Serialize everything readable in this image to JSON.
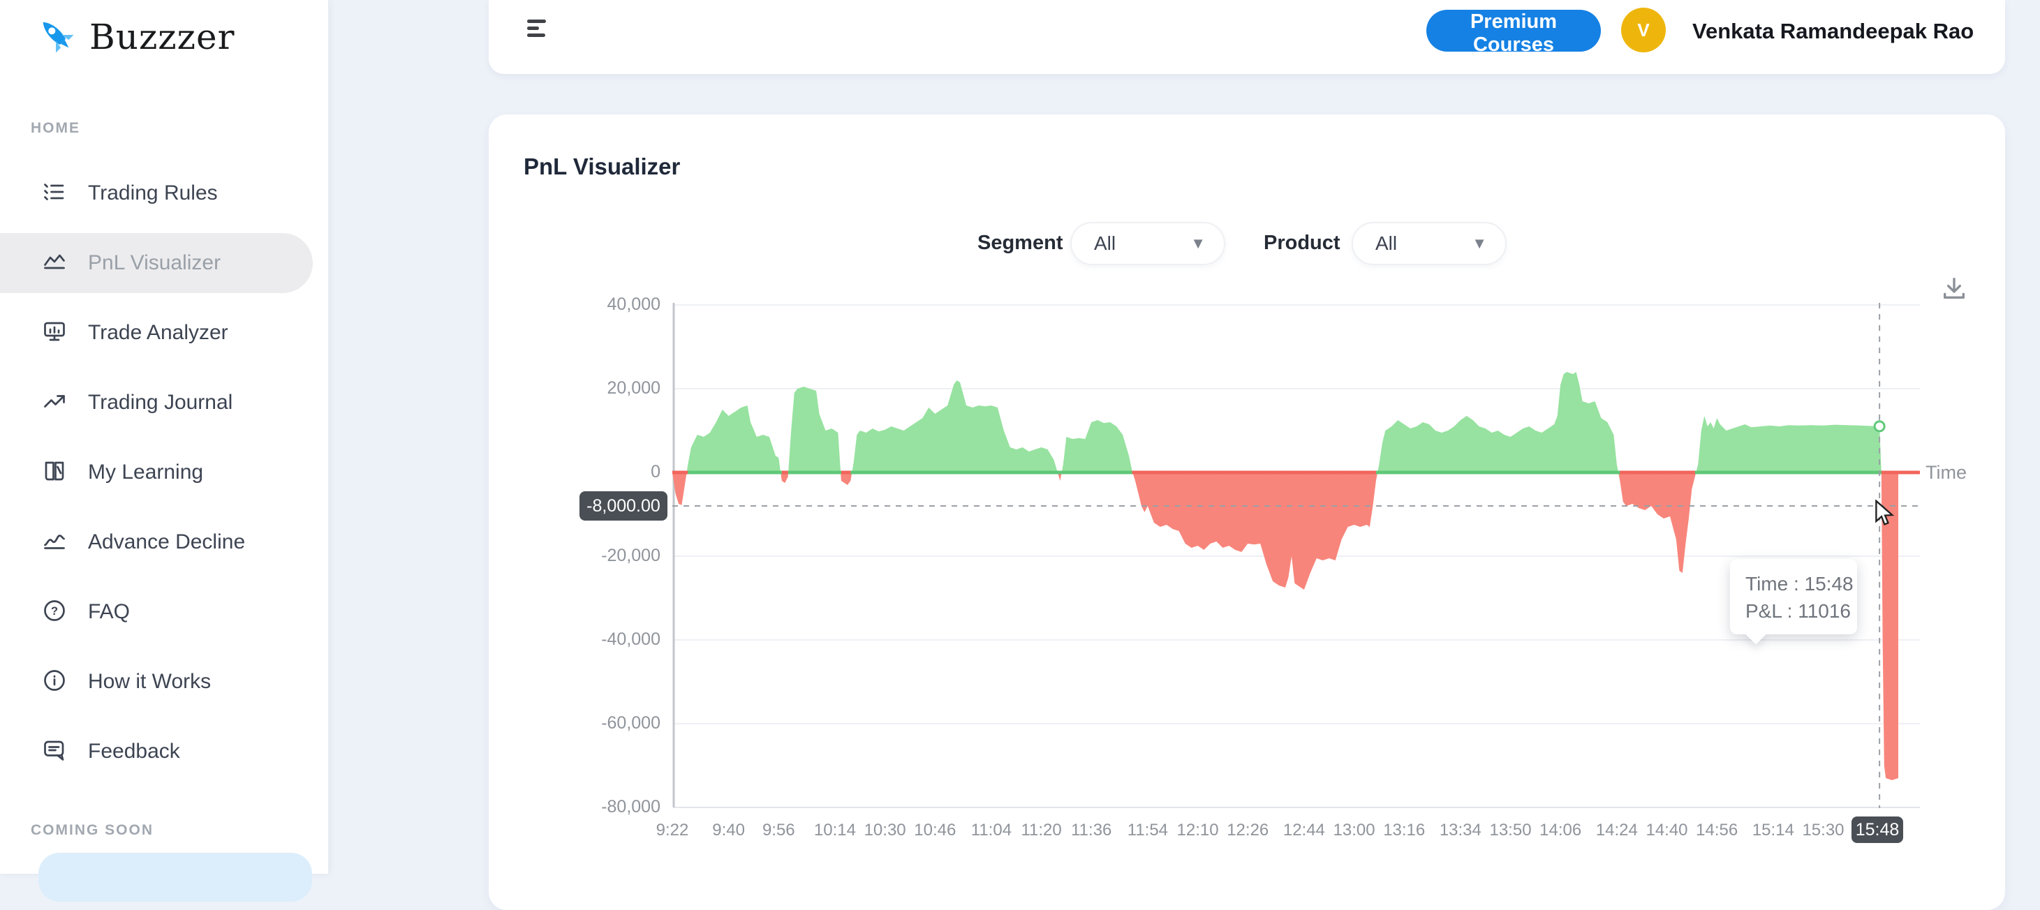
{
  "sidebar": {
    "logo_text": "Buzzzer",
    "section_home": "HOME",
    "section_coming_soon": "COMING SOON",
    "items": [
      {
        "icon": "list-check",
        "label": "Trading Rules",
        "active": false
      },
      {
        "icon": "area-chart",
        "label": "PnL Visualizer",
        "active": true
      },
      {
        "icon": "monitor",
        "label": "Trade Analyzer",
        "active": false
      },
      {
        "icon": "trend-up",
        "label": "Trading Journal",
        "active": false
      },
      {
        "icon": "book",
        "label": "My Learning",
        "active": false
      },
      {
        "icon": "wave",
        "label": "Advance Decline",
        "active": false
      },
      {
        "icon": "question",
        "label": "FAQ",
        "active": false
      },
      {
        "icon": "info",
        "label": "How it Works",
        "active": false
      },
      {
        "icon": "chat",
        "label": "Feedback",
        "active": false
      }
    ]
  },
  "topbar": {
    "premium_button": "Premium Courses",
    "avatar_initial": "V",
    "user_name": "Venkata Ramandeepak Rao"
  },
  "main": {
    "title": "PnL Visualizer",
    "filters": {
      "segment_label": "Segment",
      "segment_value": "All",
      "product_label": "Product",
      "product_value": "All"
    }
  },
  "colors": {
    "accent_blue": "#1581e4",
    "avatar_gold": "#eeb60d",
    "positive_fill": "#97e2a0",
    "negative_fill": "#f8857b",
    "positive_line": "#5fc878",
    "negative_line": "#f2655c",
    "badge_bg": "#4a4f55"
  },
  "chart_data": {
    "type": "area",
    "title": "PnL Visualizer",
    "xlabel": "Time",
    "ylabel": "",
    "ylim": [
      -80000,
      40000
    ],
    "grid": true,
    "t_max": 392,
    "y_ticks": [
      {
        "label": "40,000",
        "v": 40000
      },
      {
        "label": "20,000",
        "v": 20000
      },
      {
        "label": "0",
        "v": 0
      },
      {
        "label": "-20,000",
        "v": -20000
      },
      {
        "label": "-40,000",
        "v": -40000
      },
      {
        "label": "-60,000",
        "v": -60000
      },
      {
        "label": "-80,000",
        "v": -80000
      }
    ],
    "x_ticks": [
      {
        "label": "9:22",
        "t": 0
      },
      {
        "label": "9:40",
        "t": 18
      },
      {
        "label": "9:56",
        "t": 34
      },
      {
        "label": "10:14",
        "t": 52
      },
      {
        "label": "10:30",
        "t": 68
      },
      {
        "label": "10:46",
        "t": 84
      },
      {
        "label": "11:04",
        "t": 102
      },
      {
        "label": "11:20",
        "t": 118
      },
      {
        "label": "11:36",
        "t": 134
      },
      {
        "label": "11:54",
        "t": 152
      },
      {
        "label": "12:10",
        "t": 168
      },
      {
        "label": "12:26",
        "t": 184
      },
      {
        "label": "12:44",
        "t": 202
      },
      {
        "label": "13:00",
        "t": 218
      },
      {
        "label": "13:16",
        "t": 234
      },
      {
        "label": "13:34",
        "t": 252
      },
      {
        "label": "13:50",
        "t": 268
      },
      {
        "label": "14:06",
        "t": 284
      },
      {
        "label": "14:24",
        "t": 302
      },
      {
        "label": "14:40",
        "t": 318
      },
      {
        "label": "14:56",
        "t": 334
      },
      {
        "label": "15:14",
        "t": 352
      },
      {
        "label": "15:30",
        "t": 368
      }
    ],
    "crosshair": {
      "t": 386,
      "value": 11016,
      "y_badge": "-8,000.00",
      "y_badge_value": -8000,
      "x_badge": "15:48"
    },
    "tooltip": {
      "line1": "Time : 15:48",
      "line2": "P&L : 11016"
    },
    "series": [
      {
        "name": "P&L",
        "points": [
          [
            0,
            0
          ],
          [
            1,
            -5000
          ],
          [
            2,
            -7500
          ],
          [
            3,
            -7800
          ],
          [
            4,
            -3000
          ],
          [
            5,
            2000
          ],
          [
            6,
            6000
          ],
          [
            8,
            9000
          ],
          [
            10,
            8500
          ],
          [
            12,
            9500
          ],
          [
            14,
            12000
          ],
          [
            16,
            15000
          ],
          [
            18,
            13500
          ],
          [
            20,
            14500
          ],
          [
            22,
            15500
          ],
          [
            24,
            16000
          ],
          [
            25,
            12000
          ],
          [
            27,
            8500
          ],
          [
            29,
            9000
          ],
          [
            31,
            8500
          ],
          [
            33,
            4000
          ],
          [
            34,
            3500
          ],
          [
            35,
            -2000
          ],
          [
            36,
            -2500
          ],
          [
            37,
            -1000
          ],
          [
            38,
            10000
          ],
          [
            39,
            19000
          ],
          [
            40,
            20000
          ],
          [
            42,
            20500
          ],
          [
            44,
            20000
          ],
          [
            46,
            19500
          ],
          [
            47,
            14000
          ],
          [
            49,
            10000
          ],
          [
            51,
            10500
          ],
          [
            53,
            9500
          ],
          [
            54,
            -2000
          ],
          [
            56,
            -3000
          ],
          [
            57,
            -2000
          ],
          [
            58,
            2500
          ],
          [
            59,
            9000
          ],
          [
            60,
            10000
          ],
          [
            62,
            9500
          ],
          [
            64,
            10500
          ],
          [
            66,
            9800
          ],
          [
            68,
            10200
          ],
          [
            70,
            11000
          ],
          [
            72,
            10500
          ],
          [
            74,
            10000
          ],
          [
            76,
            11000
          ],
          [
            78,
            12000
          ],
          [
            80,
            13000
          ],
          [
            82,
            15500
          ],
          [
            84,
            14000
          ],
          [
            86,
            15000
          ],
          [
            88,
            16000
          ],
          [
            90,
            21000
          ],
          [
            91,
            22000
          ],
          [
            92,
            21500
          ],
          [
            94,
            16000
          ],
          [
            96,
            15500
          ],
          [
            98,
            16000
          ],
          [
            100,
            15800
          ],
          [
            102,
            16000
          ],
          [
            104,
            15500
          ],
          [
            106,
            10000
          ],
          [
            108,
            6000
          ],
          [
            110,
            5500
          ],
          [
            112,
            6000
          ],
          [
            114,
            5000
          ],
          [
            116,
            5500
          ],
          [
            118,
            6000
          ],
          [
            120,
            5500
          ],
          [
            122,
            3000
          ],
          [
            124,
            -2000
          ],
          [
            125,
            2000
          ],
          [
            126,
            8500
          ],
          [
            128,
            8000
          ],
          [
            130,
            8200
          ],
          [
            132,
            8000
          ],
          [
            134,
            12000
          ],
          [
            136,
            12500
          ],
          [
            138,
            11800
          ],
          [
            140,
            12000
          ],
          [
            142,
            11000
          ],
          [
            144,
            9000
          ],
          [
            146,
            4000
          ],
          [
            147,
            500
          ],
          [
            148,
            -2000
          ],
          [
            149,
            -5000
          ],
          [
            150,
            -8000
          ],
          [
            151,
            -9500
          ],
          [
            152,
            -8000
          ],
          [
            154,
            -12000
          ],
          [
            156,
            -13000
          ],
          [
            158,
            -12500
          ],
          [
            160,
            -13500
          ],
          [
            162,
            -14000
          ],
          [
            164,
            -17000
          ],
          [
            166,
            -18000
          ],
          [
            168,
            -17500
          ],
          [
            170,
            -18500
          ],
          [
            172,
            -17000
          ],
          [
            174,
            -16500
          ],
          [
            176,
            -18000
          ],
          [
            178,
            -17500
          ],
          [
            180,
            -18500
          ],
          [
            182,
            -19000
          ],
          [
            184,
            -17000
          ],
          [
            186,
            -17200
          ],
          [
            188,
            -17000
          ],
          [
            190,
            -22000
          ],
          [
            192,
            -26000
          ],
          [
            194,
            -27000
          ],
          [
            196,
            -27500
          ],
          [
            197,
            -25000
          ],
          [
            198,
            -20000
          ],
          [
            199,
            -26500
          ],
          [
            200,
            -27000
          ],
          [
            202,
            -28000
          ],
          [
            204,
            -24000
          ],
          [
            206,
            -20500
          ],
          [
            208,
            -21000
          ],
          [
            210,
            -20500
          ],
          [
            212,
            -21000
          ],
          [
            214,
            -16000
          ],
          [
            216,
            -13000
          ],
          [
            218,
            -12500
          ],
          [
            220,
            -13000
          ],
          [
            222,
            -12500
          ],
          [
            223,
            -13000
          ],
          [
            224,
            -8000
          ],
          [
            225,
            -2000
          ],
          [
            226,
            2000
          ],
          [
            227,
            7000
          ],
          [
            228,
            10000
          ],
          [
            230,
            11000
          ],
          [
            232,
            12500
          ],
          [
            234,
            11500
          ],
          [
            236,
            10500
          ],
          [
            238,
            11000
          ],
          [
            240,
            12000
          ],
          [
            242,
            11500
          ],
          [
            244,
            10000
          ],
          [
            246,
            9500
          ],
          [
            248,
            10000
          ],
          [
            250,
            11000
          ],
          [
            252,
            12500
          ],
          [
            254,
            13500
          ],
          [
            256,
            12500
          ],
          [
            258,
            11000
          ],
          [
            260,
            10500
          ],
          [
            262,
            9500
          ],
          [
            264,
            10000
          ],
          [
            266,
            9000
          ],
          [
            268,
            8500
          ],
          [
            270,
            9500
          ],
          [
            272,
            10500
          ],
          [
            274,
            11000
          ],
          [
            276,
            10000
          ],
          [
            278,
            9500
          ],
          [
            280,
            10500
          ],
          [
            282,
            11500
          ],
          [
            283,
            13500
          ],
          [
            284,
            21000
          ],
          [
            285,
            23500
          ],
          [
            286,
            24000
          ],
          [
            288,
            23500
          ],
          [
            289,
            24000
          ],
          [
            290,
            21000
          ],
          [
            291,
            17000
          ],
          [
            293,
            16500
          ],
          [
            295,
            17000
          ],
          [
            297,
            13000
          ],
          [
            299,
            12000
          ],
          [
            301,
            9000
          ],
          [
            302,
            2000
          ],
          [
            303,
            -2000
          ],
          [
            304,
            -7000
          ],
          [
            305,
            -8000
          ],
          [
            307,
            -7500
          ],
          [
            309,
            -8500
          ],
          [
            311,
            -9000
          ],
          [
            313,
            -8000
          ],
          [
            315,
            -10000
          ],
          [
            317,
            -11000
          ],
          [
            319,
            -10500
          ],
          [
            321,
            -16000
          ],
          [
            322,
            -23500
          ],
          [
            323,
            -24000
          ],
          [
            324,
            -17000
          ],
          [
            325,
            -11000
          ],
          [
            326,
            -4000
          ],
          [
            327,
            -1000
          ],
          [
            328,
            2000
          ],
          [
            329,
            10000
          ],
          [
            330,
            13500
          ],
          [
            331,
            11000
          ],
          [
            332,
            12000
          ],
          [
            333,
            10500
          ],
          [
            334,
            13000
          ],
          [
            335,
            11500
          ],
          [
            337,
            10000
          ],
          [
            339,
            10500
          ],
          [
            341,
            11000
          ],
          [
            343,
            11500
          ],
          [
            345,
            10800
          ],
          [
            348,
            11000
          ],
          [
            351,
            11200
          ],
          [
            354,
            11000
          ],
          [
            357,
            11300
          ],
          [
            360,
            11200
          ],
          [
            364,
            11300
          ],
          [
            368,
            11200
          ],
          [
            372,
            11400
          ],
          [
            376,
            11300
          ],
          [
            380,
            11200
          ],
          [
            383,
            11100
          ],
          [
            386,
            11016
          ],
          [
            386.6,
            0
          ],
          [
            387,
            -40000
          ],
          [
            387.5,
            -70000
          ],
          [
            388,
            -73000
          ],
          [
            390,
            -73500
          ],
          [
            392,
            -73000
          ]
        ]
      }
    ]
  }
}
